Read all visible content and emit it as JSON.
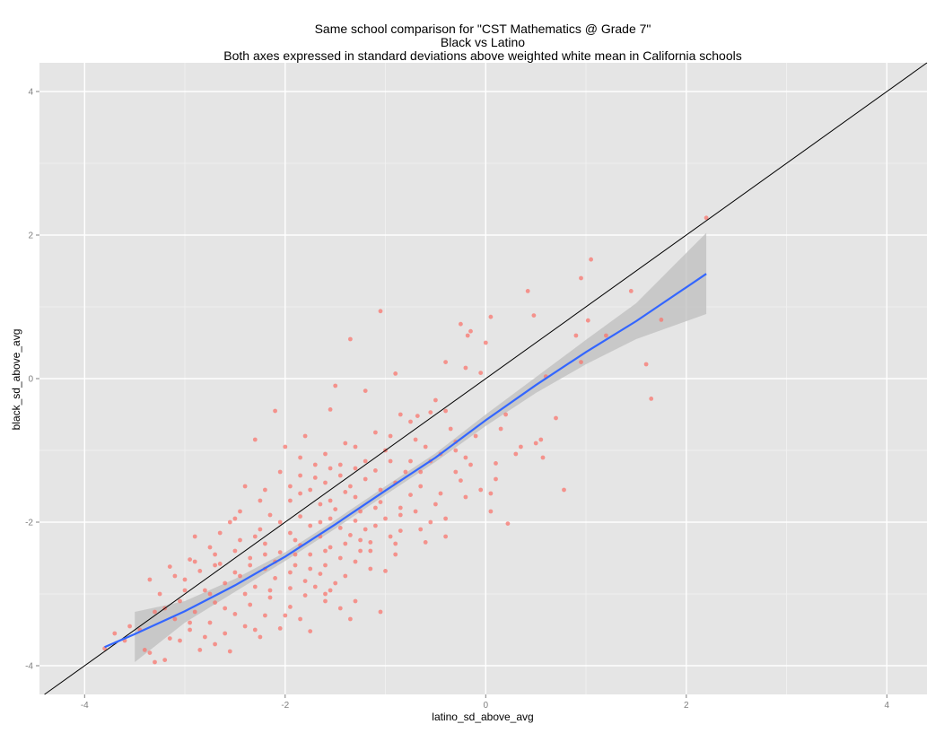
{
  "chart_data": {
    "type": "scatter",
    "title_lines": [
      "Same school comparison for \"CST Mathematics @ Grade 7\"",
      "Black vs Latino",
      "Both axes expressed in standard deviations above weighted white mean in California schools"
    ],
    "xlabel": "latino_sd_above_avg",
    "ylabel": "black_sd_above_avg",
    "xlim": [
      -4.45,
      4.4
    ],
    "ylim": [
      -4.4,
      4.4
    ],
    "x_ticks": [
      -4,
      -2,
      0,
      2,
      4
    ],
    "y_ticks": [
      -4,
      -2,
      0,
      2,
      4
    ],
    "x_tick_labels": [
      "-4",
      "-2",
      "0",
      "2",
      "4"
    ],
    "y_tick_labels": [
      "-4",
      "-2",
      "0",
      "2",
      "4"
    ],
    "grid": true,
    "colors": {
      "panel": "#e5e5e5",
      "grid_major": "#ffffff",
      "points": "#f8766d",
      "smooth": "#3366ff",
      "ribbon": "#bdbdbd",
      "reference_line": "#000000"
    },
    "reference_line": {
      "slope": 1,
      "intercept": 0
    },
    "smooth": {
      "x": [
        -3.8,
        -3.5,
        -3.0,
        -2.5,
        -2.0,
        -1.5,
        -1.0,
        -0.5,
        0.0,
        0.5,
        1.0,
        1.5,
        2.2
      ],
      "y": [
        -3.74,
        -3.56,
        -3.24,
        -2.88,
        -2.48,
        -2.03,
        -1.56,
        -1.1,
        -0.58,
        -0.09,
        0.37,
        0.8,
        1.46
      ],
      "lower": [
        null,
        -3.95,
        -3.4,
        -2.97,
        -2.54,
        -2.09,
        -1.62,
        -1.16,
        -0.66,
        -0.2,
        0.2,
        0.55,
        0.9
      ],
      "upper": [
        null,
        -3.25,
        -3.1,
        -2.79,
        -2.42,
        -1.97,
        -1.5,
        -1.04,
        -0.5,
        0.02,
        0.54,
        1.05,
        2.03
      ]
    },
    "points": [
      [
        2.2,
        2.24
      ],
      [
        1.05,
        1.66
      ],
      [
        0.95,
        1.4
      ],
      [
        1.45,
        1.22
      ],
      [
        0.42,
        1.22
      ],
      [
        0.48,
        0.88
      ],
      [
        -1.05,
        0.94
      ],
      [
        0.05,
        0.86
      ],
      [
        -0.25,
        0.76
      ],
      [
        1.02,
        0.81
      ],
      [
        1.75,
        0.82
      ],
      [
        -1.35,
        0.55
      ],
      [
        -0.15,
        0.66
      ],
      [
        -0.18,
        0.6
      ],
      [
        1.2,
        0.6
      ],
      [
        0.9,
        0.6
      ],
      [
        0.0,
        0.5
      ],
      [
        -0.4,
        0.23
      ],
      [
        1.6,
        0.2
      ],
      [
        0.95,
        0.23
      ],
      [
        -0.2,
        0.15
      ],
      [
        -0.05,
        0.08
      ],
      [
        -0.9,
        0.07
      ],
      [
        0.6,
        0.03
      ],
      [
        -1.5,
        -0.1
      ],
      [
        -1.2,
        -0.17
      ],
      [
        1.65,
        -0.28
      ],
      [
        -1.55,
        -0.43
      ],
      [
        -2.1,
        -0.45
      ],
      [
        -0.68,
        -0.52
      ],
      [
        0.7,
        -0.55
      ],
      [
        -0.55,
        -0.47
      ],
      [
        -0.85,
        -0.5
      ],
      [
        -0.7,
        -0.85
      ],
      [
        -1.8,
        -0.8
      ],
      [
        -2.3,
        -0.85
      ],
      [
        0.5,
        -0.9
      ],
      [
        -0.3,
        -0.88
      ],
      [
        -1.3,
        -0.95
      ],
      [
        -1.0,
        -1.0
      ],
      [
        -0.45,
        -1.05
      ],
      [
        -0.2,
        -1.1
      ],
      [
        -2.0,
        -0.95
      ],
      [
        -1.6,
        -1.05
      ],
      [
        0.55,
        -0.85
      ],
      [
        0.57,
        -1.1
      ],
      [
        0.3,
        -1.05
      ],
      [
        -1.45,
        -1.2
      ],
      [
        -1.1,
        -1.28
      ],
      [
        -0.9,
        -1.45
      ],
      [
        -0.65,
        -1.3
      ],
      [
        -0.3,
        -1.3
      ],
      [
        0.1,
        -1.18
      ],
      [
        0.1,
        -1.4
      ],
      [
        -2.4,
        -1.5
      ],
      [
        -1.85,
        -1.35
      ],
      [
        -1.2,
        -1.4
      ],
      [
        -1.75,
        -1.55
      ],
      [
        -1.4,
        -1.58
      ],
      [
        -0.75,
        -1.62
      ],
      [
        0.05,
        -1.6
      ],
      [
        -0.05,
        -1.55
      ],
      [
        0.78,
        -1.55
      ],
      [
        -1.95,
        -1.7
      ],
      [
        -1.65,
        -1.75
      ],
      [
        -1.05,
        -1.72
      ],
      [
        -0.5,
        -1.75
      ],
      [
        -1.5,
        -1.82
      ],
      [
        -1.25,
        -1.85
      ],
      [
        -0.85,
        -1.9
      ],
      [
        -2.15,
        -1.9
      ],
      [
        -1.85,
        -1.92
      ],
      [
        -1.55,
        -1.95
      ],
      [
        -1.3,
        -1.98
      ],
      [
        -0.4,
        -1.95
      ],
      [
        0.05,
        -1.85
      ],
      [
        -1.75,
        -2.05
      ],
      [
        -1.45,
        -2.08
      ],
      [
        -1.1,
        -2.05
      ],
      [
        -0.85,
        -2.12
      ],
      [
        -2.25,
        -2.1
      ],
      [
        0.22,
        -2.02
      ],
      [
        -1.95,
        -2.15
      ],
      [
        -1.65,
        -2.2
      ],
      [
        -1.35,
        -2.18
      ],
      [
        -0.95,
        -2.2
      ],
      [
        -0.4,
        -2.2
      ],
      [
        -2.2,
        -2.3
      ],
      [
        -1.85,
        -2.32
      ],
      [
        -1.55,
        -2.35
      ],
      [
        -1.15,
        -2.28
      ],
      [
        -0.9,
        -2.3
      ],
      [
        -0.6,
        -2.28
      ],
      [
        -2.9,
        -2.2
      ],
      [
        -2.5,
        -2.4
      ],
      [
        -2.05,
        -2.42
      ],
      [
        -1.75,
        -2.45
      ],
      [
        -1.45,
        -2.5
      ],
      [
        -1.25,
        -2.4
      ],
      [
        -2.75,
        -2.35
      ],
      [
        -2.35,
        -2.5
      ],
      [
        -2.1,
        -2.55
      ],
      [
        -1.9,
        -2.6
      ],
      [
        -1.6,
        -2.6
      ],
      [
        -1.3,
        -2.55
      ],
      [
        -2.95,
        -2.52
      ],
      [
        -2.65,
        -2.58
      ],
      [
        -2.2,
        -2.65
      ],
      [
        -1.95,
        -2.7
      ],
      [
        -1.65,
        -2.72
      ],
      [
        -1.0,
        -2.68
      ],
      [
        -3.15,
        -2.62
      ],
      [
        -2.85,
        -2.68
      ],
      [
        -2.45,
        -2.75
      ],
      [
        -2.1,
        -2.78
      ],
      [
        -1.8,
        -2.82
      ],
      [
        -1.4,
        -2.75
      ],
      [
        -3.0,
        -2.8
      ],
      [
        -2.6,
        -2.85
      ],
      [
        -2.3,
        -2.9
      ],
      [
        -1.95,
        -2.92
      ],
      [
        -1.55,
        -2.95
      ],
      [
        -3.35,
        -2.8
      ],
      [
        -2.8,
        -2.95
      ],
      [
        -2.4,
        -3.0
      ],
      [
        -2.15,
        -3.05
      ],
      [
        -1.8,
        -3.02
      ],
      [
        -3.05,
        -3.1
      ],
      [
        -2.7,
        -3.12
      ],
      [
        -2.35,
        -3.15
      ],
      [
        -1.95,
        -3.18
      ],
      [
        -1.6,
        -3.1
      ],
      [
        -3.2,
        -3.2
      ],
      [
        -2.9,
        -3.25
      ],
      [
        -2.5,
        -3.28
      ],
      [
        -2.2,
        -3.3
      ],
      [
        -1.85,
        -3.35
      ],
      [
        -1.35,
        -3.35
      ],
      [
        -1.05,
        -3.25
      ],
      [
        -3.1,
        -3.35
      ],
      [
        -2.75,
        -3.4
      ],
      [
        -2.4,
        -3.45
      ],
      [
        -2.05,
        -3.48
      ],
      [
        -1.75,
        -3.52
      ],
      [
        -3.45,
        -3.5
      ],
      [
        -2.95,
        -3.5
      ],
      [
        -2.6,
        -3.55
      ],
      [
        -2.3,
        -3.5
      ],
      [
        -3.6,
        -3.65
      ],
      [
        -3.15,
        -3.62
      ],
      [
        -2.7,
        -3.7
      ],
      [
        -2.85,
        -3.78
      ],
      [
        -3.35,
        -3.82
      ],
      [
        -3.8,
        -3.76
      ],
      [
        -3.2,
        -3.92
      ],
      [
        -3.3,
        -3.95
      ],
      [
        -3.4,
        -3.78
      ],
      [
        -2.55,
        -3.8
      ],
      [
        -1.7,
        -1.38
      ],
      [
        -1.85,
        -1.6
      ],
      [
        -1.45,
        -1.35
      ],
      [
        -1.3,
        -1.65
      ],
      [
        -1.05,
        -1.55
      ],
      [
        -0.8,
        -1.3
      ],
      [
        -0.55,
        -1.15
      ],
      [
        -1.55,
        -1.7
      ],
      [
        -1.9,
        -2.25
      ],
      [
        -2.05,
        -2.0
      ],
      [
        -2.3,
        -2.2
      ],
      [
        -1.65,
        -2.0
      ],
      [
        -1.2,
        -2.1
      ],
      [
        -0.7,
        -1.85
      ],
      [
        -0.25,
        -1.42
      ],
      [
        -0.6,
        -0.95
      ],
      [
        -0.95,
        -1.15
      ],
      [
        -1.2,
        -1.15
      ],
      [
        -1.4,
        -0.9
      ],
      [
        -1.7,
        -1.2
      ],
      [
        -2.05,
        -1.3
      ],
      [
        -2.45,
        -1.85
      ],
      [
        -2.65,
        -2.15
      ],
      [
        -2.7,
        -2.45
      ],
      [
        -2.45,
        -2.25
      ],
      [
        -2.2,
        -2.45
      ],
      [
        -1.6,
        -2.4
      ],
      [
        -1.15,
        -2.4
      ],
      [
        -0.85,
        -1.8
      ],
      [
        -0.45,
        -1.6
      ],
      [
        -0.15,
        -1.2
      ],
      [
        -0.35,
        -0.7
      ],
      [
        -0.75,
        -0.6
      ],
      [
        -1.1,
        -0.75
      ],
      [
        -1.6,
        -1.45
      ],
      [
        -1.95,
        -1.5
      ],
      [
        -2.25,
        -1.7
      ],
      [
        -2.55,
        -2.0
      ],
      [
        -2.9,
        -2.55
      ],
      [
        -3.1,
        -2.75
      ],
      [
        -2.75,
        -3.0
      ],
      [
        -2.5,
        -2.7
      ],
      [
        -2.15,
        -2.95
      ],
      [
        -1.75,
        -2.65
      ],
      [
        -1.5,
        -2.85
      ],
      [
        -1.25,
        -2.25
      ],
      [
        -1.0,
        -1.95
      ],
      [
        -0.65,
        -1.5
      ],
      [
        -0.3,
        -1.0
      ],
      [
        -0.1,
        -0.8
      ],
      [
        0.2,
        -0.5
      ],
      [
        -0.5,
        -0.3
      ],
      [
        -0.95,
        -0.8
      ],
      [
        -1.3,
        -1.25
      ],
      [
        -1.85,
        -1.1
      ],
      [
        -2.35,
        -2.6
      ],
      [
        -2.6,
        -3.2
      ],
      [
        -2.95,
        -3.4
      ],
      [
        -3.25,
        -3.0
      ],
      [
        -3.55,
        -3.45
      ],
      [
        -3.7,
        -3.55
      ],
      [
        -1.4,
        -2.3
      ],
      [
        -1.1,
        -1.8
      ],
      [
        -0.75,
        -1.15
      ],
      [
        -0.4,
        -0.45
      ],
      [
        0.15,
        -0.7
      ],
      [
        0.35,
        -0.95
      ],
      [
        -0.2,
        -1.65
      ],
      [
        -0.55,
        -2.0
      ],
      [
        -1.6,
        -3.0
      ],
      [
        -1.3,
        -3.1
      ],
      [
        -2.0,
        -3.3
      ],
      [
        -2.25,
        -3.6
      ],
      [
        -2.8,
        -3.6
      ],
      [
        -3.05,
        -3.65
      ],
      [
        -1.15,
        -2.65
      ],
      [
        -0.9,
        -2.45
      ],
      [
        -0.65,
        -2.1
      ],
      [
        -1.35,
        -1.5
      ],
      [
        -1.55,
        -1.25
      ],
      [
        -2.2,
        -1.55
      ],
      [
        -2.5,
        -1.95
      ],
      [
        -1.9,
        -2.45
      ],
      [
        -1.7,
        -2.9
      ],
      [
        -1.45,
        -3.2
      ],
      [
        -2.7,
        -2.6
      ],
      [
        -3.0,
        -2.95
      ],
      [
        -3.3,
        -3.25
      ]
    ]
  }
}
